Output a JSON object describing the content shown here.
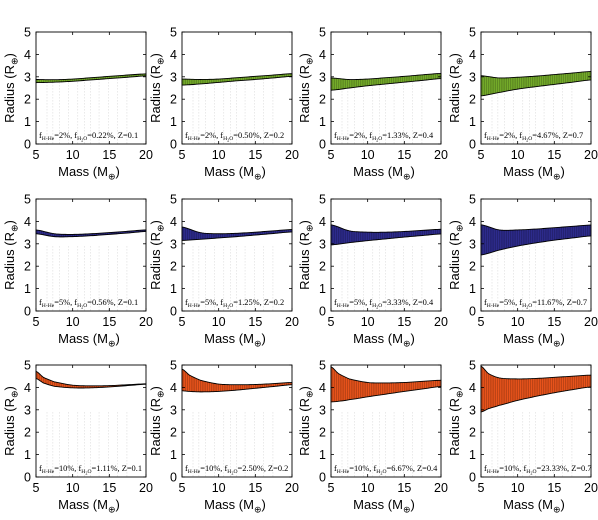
{
  "chart_data": [
    {
      "type": "area",
      "panel": "1-1",
      "color": "#74ab2a",
      "xlabel": "Mass (M",
      "xlabel_sub": "⊕",
      "xlabel_close": ")",
      "ylabel": "Radius (R",
      "ylabel_sub": "⊕",
      "ylabel_close": ")",
      "xlim": [
        5,
        20
      ],
      "ylim": [
        0,
        5
      ],
      "xticks": [
        "5",
        "10",
        "15",
        "20"
      ],
      "yticks": [
        "0",
        "1",
        "2",
        "3",
        "4",
        "5"
      ],
      "annotation": {
        "f1": "f",
        "s1": "H-He",
        "t1": "=2%, f",
        "s2": "H",
        "s3": "2",
        "s4": "O",
        "t2": "=0.22%, Z=0.1"
      },
      "x": [
        5,
        7.5,
        10,
        12.5,
        15,
        17.5,
        20
      ],
      "upper": [
        2.88,
        2.87,
        2.9,
        2.96,
        3.02,
        3.08,
        3.13
      ],
      "lower": [
        2.74,
        2.76,
        2.8,
        2.86,
        2.92,
        2.98,
        3.04
      ]
    },
    {
      "type": "area",
      "panel": "1-2",
      "color": "#74ab2a",
      "xlabel": "Mass (M",
      "xlabel_sub": "⊕",
      "xlabel_close": ")",
      "ylabel": "Radius (R",
      "ylabel_sub": "⊕",
      "ylabel_close": ")",
      "xlim": [
        5,
        20
      ],
      "ylim": [
        0,
        5
      ],
      "xticks": [
        "5",
        "10",
        "15",
        "20"
      ],
      "yticks": [
        "0",
        "1",
        "2",
        "3",
        "4",
        "5"
      ],
      "annotation": {
        "f1": "f",
        "s1": "H-He",
        "t1": "=2%, f",
        "s2": "H",
        "s3": "2",
        "s4": "O",
        "t2": "=0.50%, Z=0.2"
      },
      "x": [
        5,
        7.5,
        10,
        12.5,
        15,
        17.5,
        20
      ],
      "upper": [
        2.9,
        2.88,
        2.9,
        2.96,
        3.02,
        3.08,
        3.14
      ],
      "lower": [
        2.63,
        2.68,
        2.75,
        2.82,
        2.88,
        2.95,
        3.02
      ]
    },
    {
      "type": "area",
      "panel": "1-3",
      "color": "#74ab2a",
      "xlabel": "Mass (M",
      "xlabel_sub": "⊕",
      "xlabel_close": ")",
      "ylabel": "Radius (R",
      "ylabel_sub": "⊕",
      "ylabel_close": ")",
      "xlim": [
        5,
        20
      ],
      "ylim": [
        0,
        5
      ],
      "xticks": [
        "5",
        "10",
        "15",
        "20"
      ],
      "yticks": [
        "0",
        "1",
        "2",
        "3",
        "4",
        "5"
      ],
      "annotation": {
        "f1": "f",
        "s1": "H-He",
        "t1": "=2%, f",
        "s2": "H",
        "s3": "2",
        "s4": "O",
        "t2": "=1.33%, Z=0.4"
      },
      "x": [
        5,
        7.5,
        10,
        12.5,
        15,
        17.5,
        20
      ],
      "upper": [
        2.95,
        2.88,
        2.9,
        2.96,
        3.02,
        3.09,
        3.15
      ],
      "lower": [
        2.4,
        2.5,
        2.6,
        2.68,
        2.76,
        2.84,
        2.92
      ]
    },
    {
      "type": "area",
      "panel": "1-4",
      "color": "#74ab2a",
      "xlabel": "Mass (M",
      "xlabel_sub": "⊕",
      "xlabel_close": ")",
      "ylabel": "Radius (R",
      "ylabel_sub": "⊕",
      "ylabel_close": ")",
      "xlim": [
        5,
        20
      ],
      "ylim": [
        0,
        5
      ],
      "xticks": [
        "5",
        "10",
        "15",
        "20"
      ],
      "yticks": [
        "0",
        "1",
        "2",
        "3",
        "4",
        "5"
      ],
      "annotation": {
        "f1": "f",
        "s1": "H-He",
        "t1": "=2%, f",
        "s2": "H",
        "s3": "2",
        "s4": "O",
        "t2": "=4.67%, Z=0.7"
      },
      "x": [
        5,
        7.5,
        10,
        12.5,
        15,
        17.5,
        20
      ],
      "upper": [
        3.05,
        2.95,
        2.98,
        3.03,
        3.1,
        3.17,
        3.24
      ],
      "lower": [
        2.15,
        2.3,
        2.45,
        2.56,
        2.66,
        2.76,
        2.86
      ]
    },
    {
      "type": "area",
      "panel": "2-1",
      "color": "#2d2b8c",
      "xlabel": "Mass (M",
      "xlabel_sub": "⊕",
      "xlabel_close": ")",
      "ylabel": "Radius (R",
      "ylabel_sub": "⊕",
      "ylabel_close": ")",
      "xlim": [
        5,
        20
      ],
      "ylim": [
        0,
        5
      ],
      "xticks": [
        "5",
        "10",
        "15",
        "20"
      ],
      "yticks": [
        "0",
        "1",
        "2",
        "3",
        "4",
        "5"
      ],
      "annotation": {
        "f1": "f",
        "s1": "H-He",
        "t1": "=5%, f",
        "s2": "H",
        "s3": "2",
        "s4": "O",
        "t2": "=0.56%, Z=0.1"
      },
      "x": [
        5,
        7.5,
        10,
        12.5,
        15,
        17.5,
        20
      ],
      "upper": [
        3.62,
        3.45,
        3.42,
        3.45,
        3.5,
        3.56,
        3.62
      ],
      "lower": [
        3.45,
        3.32,
        3.32,
        3.36,
        3.42,
        3.48,
        3.55
      ]
    },
    {
      "type": "area",
      "panel": "2-2",
      "color": "#2d2b8c",
      "xlabel": "Mass (M",
      "xlabel_sub": "⊕",
      "xlabel_close": ")",
      "ylabel": "Radius (R",
      "ylabel_sub": "⊕",
      "ylabel_close": ")",
      "xlim": [
        5,
        20
      ],
      "ylim": [
        0,
        5
      ],
      "xticks": [
        "5",
        "10",
        "15",
        "20"
      ],
      "yticks": [
        "0",
        "1",
        "2",
        "3",
        "4",
        "5"
      ],
      "annotation": {
        "f1": "f",
        "s1": "H-He",
        "t1": "=5%, f",
        "s2": "H",
        "s3": "2",
        "s4": "O",
        "t2": "=1.25%, Z=0.2"
      },
      "x": [
        5,
        7.5,
        10,
        12.5,
        15,
        17.5,
        20
      ],
      "upper": [
        3.75,
        3.5,
        3.45,
        3.47,
        3.52,
        3.58,
        3.64
      ],
      "lower": [
        3.15,
        3.2,
        3.26,
        3.32,
        3.39,
        3.46,
        3.53
      ]
    },
    {
      "type": "area",
      "panel": "2-3",
      "color": "#2d2b8c",
      "xlabel": "Mass (M",
      "xlabel_sub": "⊕",
      "xlabel_close": ")",
      "ylabel": "Radius (R",
      "ylabel_sub": "⊕",
      "ylabel_close": ")",
      "xlim": [
        5,
        20
      ],
      "ylim": [
        0,
        5
      ],
      "xticks": [
        "5",
        "10",
        "15",
        "20"
      ],
      "yticks": [
        "0",
        "1",
        "2",
        "3",
        "4",
        "5"
      ],
      "annotation": {
        "f1": "f",
        "s1": "H-He",
        "t1": "=5%, f",
        "s2": "H",
        "s3": "2",
        "s4": "O",
        "t2": "=3.33%, Z=0.4"
      },
      "x": [
        5,
        7.5,
        10,
        12.5,
        15,
        17.5,
        20
      ],
      "upper": [
        3.85,
        3.58,
        3.52,
        3.52,
        3.55,
        3.6,
        3.65
      ],
      "lower": [
        2.95,
        3.05,
        3.14,
        3.22,
        3.3,
        3.37,
        3.44
      ]
    },
    {
      "type": "area",
      "panel": "2-4",
      "color": "#2d2b8c",
      "xlabel": "Mass (M",
      "xlabel_sub": "⊕",
      "xlabel_close": ")",
      "ylabel": "Radius (R",
      "ylabel_sub": "⊕",
      "ylabel_close": ")",
      "xlim": [
        5,
        20
      ],
      "ylim": [
        0,
        5
      ],
      "xticks": [
        "5",
        "10",
        "15",
        "20"
      ],
      "yticks": [
        "0",
        "1",
        "2",
        "3",
        "4",
        "5"
      ],
      "annotation": {
        "f1": "f",
        "s1": "H-He",
        "t1": "=5%, f",
        "s2": "H",
        "s3": "2",
        "s4": "O",
        "t2": "=11.67%, Z=0.7"
      },
      "x": [
        5,
        7.5,
        10,
        12.5,
        15,
        17.5,
        20
      ],
      "upper": [
        3.85,
        3.62,
        3.62,
        3.66,
        3.72,
        3.78,
        3.84
      ],
      "lower": [
        2.5,
        2.72,
        2.9,
        3.04,
        3.16,
        3.26,
        3.35
      ]
    },
    {
      "type": "area",
      "panel": "3-1",
      "color": "#e8531b",
      "xlabel": "Mass (M",
      "xlabel_sub": "⊕",
      "xlabel_close": ")",
      "ylabel": "Radius (R",
      "ylabel_sub": "⊕",
      "ylabel_close": ")",
      "xlim": [
        5,
        20
      ],
      "ylim": [
        0,
        5
      ],
      "xticks": [
        "5",
        "10",
        "15",
        "20"
      ],
      "yticks": [
        "0",
        "1",
        "2",
        "3",
        "4",
        "5"
      ],
      "annotation": {
        "f1": "f",
        "s1": "H-He",
        "t1": "=10%, f",
        "s2": "H",
        "s3": "2",
        "s4": "O",
        "t2": "=1.11%, Z=0.1"
      },
      "x": [
        5,
        6,
        7.5,
        10,
        12.5,
        15,
        17.5,
        20
      ],
      "upper": [
        4.72,
        4.45,
        4.25,
        4.1,
        4.07,
        4.08,
        4.12,
        4.16
      ],
      "lower": [
        4.4,
        4.2,
        4.05,
        3.98,
        3.98,
        4.02,
        4.08,
        4.14
      ]
    },
    {
      "type": "area",
      "panel": "3-2",
      "color": "#e8531b",
      "xlabel": "Mass (M",
      "xlabel_sub": "⊕",
      "xlabel_close": ")",
      "ylabel": "Radius (R",
      "ylabel_sub": "⊕",
      "ylabel_close": ")",
      "xlim": [
        5,
        20
      ],
      "ylim": [
        0,
        5
      ],
      "xticks": [
        "5",
        "10",
        "15",
        "20"
      ],
      "yticks": [
        "0",
        "1",
        "2",
        "3",
        "4",
        "5"
      ],
      "annotation": {
        "f1": "f",
        "s1": "H-He",
        "t1": "=10%, f",
        "s2": "H",
        "s3": "2",
        "s4": "O",
        "t2": "=2.50%, Z=0.2"
      },
      "x": [
        5,
        6,
        7.5,
        10,
        12.5,
        15,
        17.5,
        20
      ],
      "upper": [
        4.82,
        4.55,
        4.32,
        4.15,
        4.12,
        4.13,
        4.17,
        4.22
      ],
      "lower": [
        3.85,
        3.82,
        3.8,
        3.82,
        3.88,
        3.96,
        4.04,
        4.12
      ]
    },
    {
      "type": "area",
      "panel": "3-3",
      "color": "#e8531b",
      "xlabel": "Mass (M",
      "xlabel_sub": "⊕",
      "xlabel_close": ")",
      "ylabel": "Radius (R",
      "ylabel_sub": "⊕",
      "ylabel_close": ")",
      "xlim": [
        5,
        20
      ],
      "ylim": [
        0,
        5
      ],
      "xticks": [
        "5",
        "10",
        "15",
        "20"
      ],
      "yticks": [
        "0",
        "1",
        "2",
        "3",
        "4",
        "5"
      ],
      "annotation": {
        "f1": "f",
        "s1": "H-He",
        "t1": "=10%, f",
        "s2": "H",
        "s3": "2",
        "s4": "O",
        "t2": "=6.67%, Z=0.4"
      },
      "x": [
        5,
        6,
        7.5,
        10,
        12.5,
        15,
        17.5,
        20
      ],
      "upper": [
        4.92,
        4.62,
        4.38,
        4.22,
        4.2,
        4.22,
        4.27,
        4.32
      ],
      "lower": [
        3.35,
        3.38,
        3.45,
        3.58,
        3.7,
        3.82,
        3.93,
        4.04
      ]
    },
    {
      "type": "area",
      "panel": "3-4",
      "color": "#e8531b",
      "xlabel": "Mass (M",
      "xlabel_sub": "⊕",
      "xlabel_close": ")",
      "ylabel": "Radius (R",
      "ylabel_sub": "⊕",
      "ylabel_close": ")",
      "xlim": [
        5,
        20
      ],
      "ylim": [
        0,
        5
      ],
      "xticks": [
        "5",
        "10",
        "15",
        "20"
      ],
      "yticks": [
        "0",
        "1",
        "2",
        "3",
        "4",
        "5"
      ],
      "annotation": {
        "f1": "f",
        "s1": "H-He",
        "t1": "=10%, f",
        "s2": "H",
        "s3": "2",
        "s4": "O",
        "t2": "=23.33%, Z=0.7"
      },
      "x": [
        5,
        6,
        7.5,
        10,
        12.5,
        15,
        17.5,
        20
      ],
      "upper": [
        4.95,
        4.62,
        4.42,
        4.38,
        4.4,
        4.45,
        4.5,
        4.55
      ],
      "lower": [
        2.9,
        3.05,
        3.2,
        3.42,
        3.6,
        3.76,
        3.9,
        4.02
      ]
    }
  ]
}
